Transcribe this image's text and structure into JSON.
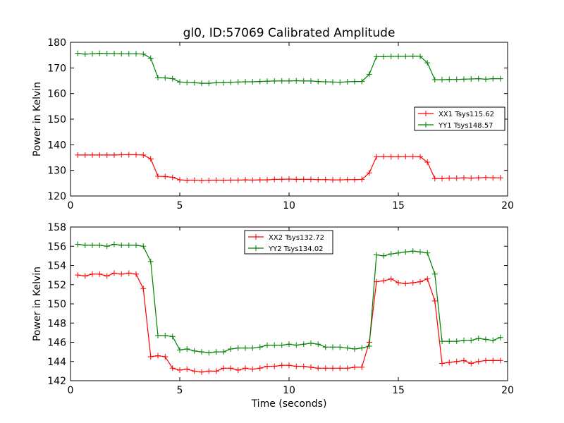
{
  "chart_data": [
    {
      "type": "line",
      "title": "gl0, ID:57069 Calibrated Amplitude",
      "xlabel": "",
      "ylabel": "Power in Kelvin",
      "xlim": [
        0,
        20
      ],
      "ylim": [
        120,
        180
      ],
      "xticks": [
        0,
        5,
        10,
        15,
        20
      ],
      "yticks": [
        120,
        130,
        140,
        150,
        160,
        170,
        180
      ],
      "grid": false,
      "legend": "center-right",
      "x": [
        0.33,
        0.67,
        1.0,
        1.33,
        1.67,
        2.0,
        2.33,
        2.67,
        3.0,
        3.33,
        3.67,
        4.0,
        4.33,
        4.67,
        5.0,
        5.33,
        5.67,
        6.0,
        6.33,
        6.67,
        7.0,
        7.33,
        7.67,
        8.0,
        8.33,
        8.67,
        9.0,
        9.33,
        9.67,
        10.0,
        10.33,
        10.67,
        11.0,
        11.33,
        11.67,
        12.0,
        12.33,
        12.67,
        13.0,
        13.33,
        13.67,
        14.0,
        14.33,
        14.67,
        15.0,
        15.33,
        15.67,
        16.0,
        16.33,
        16.67,
        17.0,
        17.33,
        17.67,
        18.0,
        18.33,
        18.67,
        19.0,
        19.33,
        19.67
      ],
      "series": [
        {
          "name": "XX1 Tsys115.62",
          "color": "#ff0000",
          "values": [
            136.0,
            136.0,
            136.0,
            136.0,
            136.0,
            136.0,
            136.1,
            136.1,
            136.1,
            136.0,
            134.5,
            127.7,
            127.6,
            127.3,
            126.3,
            126.1,
            126.2,
            126.0,
            126.1,
            126.2,
            126.1,
            126.2,
            126.2,
            126.3,
            126.2,
            126.3,
            126.3,
            126.5,
            126.5,
            126.6,
            126.5,
            126.5,
            126.5,
            126.4,
            126.4,
            126.3,
            126.3,
            126.4,
            126.4,
            126.5,
            129.0,
            135.3,
            135.4,
            135.3,
            135.3,
            135.4,
            135.4,
            135.3,
            133.2,
            126.8,
            126.8,
            127.0,
            127.0,
            127.1,
            127.0,
            127.1,
            127.2,
            127.1,
            127.1
          ]
        },
        {
          "name": "YY1 Tsys148.57",
          "color": "#008000",
          "values": [
            175.7,
            175.4,
            175.5,
            175.7,
            175.6,
            175.6,
            175.5,
            175.5,
            175.5,
            175.4,
            173.8,
            166.2,
            166.1,
            165.8,
            164.5,
            164.3,
            164.2,
            164.0,
            164.0,
            164.2,
            164.2,
            164.4,
            164.5,
            164.6,
            164.6,
            164.7,
            164.8,
            164.9,
            164.9,
            164.9,
            165.0,
            164.9,
            164.9,
            164.7,
            164.6,
            164.5,
            164.4,
            164.6,
            164.7,
            164.7,
            167.5,
            174.4,
            174.4,
            174.5,
            174.5,
            174.5,
            174.6,
            174.5,
            172.0,
            165.4,
            165.4,
            165.5,
            165.5,
            165.6,
            165.7,
            165.8,
            165.6,
            165.8,
            165.8
          ]
        }
      ]
    },
    {
      "type": "line",
      "title": "",
      "xlabel": "Time (seconds)",
      "ylabel": "Power in Kelvin",
      "xlim": [
        0,
        20
      ],
      "ylim": [
        142,
        158
      ],
      "xticks": [
        0,
        5,
        10,
        15,
        20
      ],
      "yticks": [
        142,
        144,
        146,
        148,
        150,
        152,
        154,
        156,
        158
      ],
      "grid": false,
      "legend": "top-center",
      "x": [
        0.33,
        0.67,
        1.0,
        1.33,
        1.67,
        2.0,
        2.33,
        2.67,
        3.0,
        3.33,
        3.67,
        4.0,
        4.33,
        4.67,
        5.0,
        5.33,
        5.67,
        6.0,
        6.33,
        6.67,
        7.0,
        7.33,
        7.67,
        8.0,
        8.33,
        8.67,
        9.0,
        9.33,
        9.67,
        10.0,
        10.33,
        10.67,
        11.0,
        11.33,
        11.67,
        12.0,
        12.33,
        12.67,
        13.0,
        13.33,
        13.67,
        14.0,
        14.33,
        14.67,
        15.0,
        15.33,
        15.67,
        16.0,
        16.33,
        16.67,
        17.0,
        17.33,
        17.67,
        18.0,
        18.33,
        18.67,
        19.0,
        19.33,
        19.67
      ],
      "series": [
        {
          "name": "XX2 Tsys132.72",
          "color": "#ff0000",
          "values": [
            153.0,
            152.9,
            153.1,
            153.1,
            152.9,
            153.2,
            153.1,
            153.2,
            153.1,
            151.6,
            144.5,
            144.6,
            144.5,
            143.3,
            143.1,
            143.2,
            143.0,
            142.9,
            143.0,
            143.0,
            143.3,
            143.3,
            143.1,
            143.3,
            143.2,
            143.3,
            143.5,
            143.5,
            143.6,
            143.6,
            143.5,
            143.5,
            143.4,
            143.3,
            143.3,
            143.3,
            143.3,
            143.3,
            143.4,
            143.4,
            146.0,
            152.3,
            152.4,
            152.6,
            152.2,
            152.1,
            152.2,
            152.3,
            152.6,
            150.3,
            143.8,
            143.9,
            144.0,
            144.1,
            143.8,
            144.0,
            144.1,
            144.1,
            144.1
          ]
        },
        {
          "name": "YY2 Tsys134.02",
          "color": "#008000",
          "values": [
            156.2,
            156.1,
            156.1,
            156.1,
            156.0,
            156.2,
            156.1,
            156.1,
            156.1,
            156.0,
            154.4,
            146.7,
            146.7,
            146.6,
            145.2,
            145.3,
            145.1,
            145.0,
            144.9,
            145.0,
            145.0,
            145.3,
            145.4,
            145.4,
            145.4,
            145.5,
            145.7,
            145.7,
            145.7,
            145.8,
            145.7,
            145.8,
            145.9,
            145.8,
            145.5,
            145.5,
            145.5,
            145.4,
            145.3,
            145.4,
            145.6,
            155.1,
            155.0,
            155.2,
            155.3,
            155.4,
            155.5,
            155.4,
            155.3,
            153.1,
            146.1,
            146.1,
            146.1,
            146.2,
            146.2,
            146.4,
            146.3,
            146.2,
            146.5
          ]
        }
      ]
    }
  ]
}
